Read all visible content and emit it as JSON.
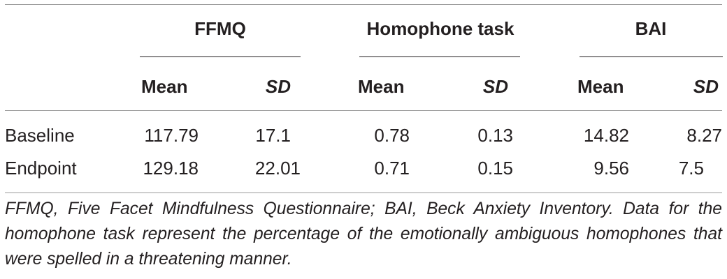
{
  "table": {
    "groups": [
      {
        "label": "FFMQ"
      },
      {
        "label": "Homophone task"
      },
      {
        "label": "BAI"
      }
    ],
    "subheaders": [
      "Mean",
      "SD",
      "Mean",
      "SD",
      "Mean",
      "SD"
    ],
    "rows": [
      {
        "label": "Baseline",
        "values": [
          "117.79",
          "17.1",
          "0.78",
          "0.13",
          "14.82",
          "8.27"
        ]
      },
      {
        "label": "Endpoint",
        "values": [
          "129.18",
          "22.01",
          "0.71",
          "0.15",
          "9.56",
          "7.5"
        ]
      }
    ]
  },
  "footnote": "FFMQ, Five Facet Mindfulness Questionnaire; BAI, Beck Anxiety Inventory. Data for the homophone task represent the percentage of the emotionally ambiguous homophones that were spelled in a threatening manner."
}
